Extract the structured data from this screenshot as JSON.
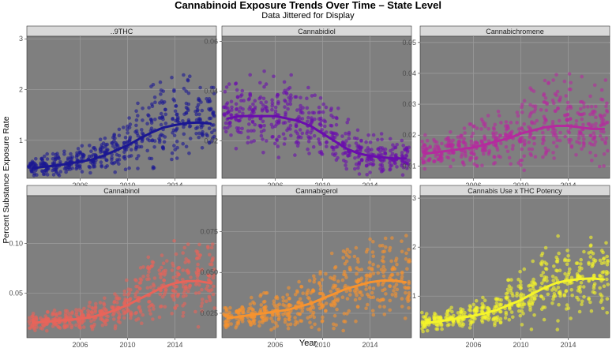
{
  "chart_data": {
    "title": "Cannabinoid Exposure Trends Over Time – State Level",
    "subtitle": "Data Jittered for Display",
    "xlabel": "Year",
    "ylabel": "Percent Substance Exposure Rate",
    "panels": [
      {
        "name": "..9THC",
        "type": "scatter",
        "color": "#1b1792",
        "xlim": [
          2001.5,
          2017.5
        ],
        "ylim": [
          0.25,
          3.05
        ],
        "yticks": [
          1,
          2,
          3
        ],
        "ytick_labels": [
          "1",
          "2",
          "3"
        ],
        "xticks": [
          2006,
          2010,
          2014
        ],
        "xtick_labels": [
          "2006",
          "2010",
          "2014"
        ],
        "x": [
          2002,
          2003,
          2004,
          2005,
          2006,
          2007,
          2008,
          2009,
          2010,
          2011,
          2012,
          2013,
          2014,
          2015,
          2016,
          2017
        ],
        "mean": [
          0.45,
          0.48,
          0.5,
          0.54,
          0.58,
          0.62,
          0.7,
          0.8,
          0.9,
          1.03,
          1.15,
          1.25,
          1.3,
          1.34,
          1.35,
          1.33
        ],
        "spread": [
          0.15,
          0.16,
          0.16,
          0.18,
          0.2,
          0.22,
          0.25,
          0.3,
          0.4,
          0.5,
          0.6,
          0.65,
          0.65,
          0.6,
          0.55,
          0.55
        ]
      },
      {
        "name": "Cannabidiol",
        "type": "scatter",
        "color": "#6a0dad",
        "xlim": [
          2001.5,
          2017.5
        ],
        "ylim": [
          0.005,
          0.062
        ],
        "yticks": [
          0.02,
          0.04,
          0.06
        ],
        "ytick_labels": [
          "0.02",
          "0.04",
          "0.06"
        ],
        "xticks": [
          2006,
          2010,
          2014
        ],
        "xtick_labels": [
          "2006",
          "2010",
          "2014"
        ],
        "x": [
          2002,
          2003,
          2004,
          2005,
          2006,
          2007,
          2008,
          2009,
          2010,
          2011,
          2012,
          2013,
          2014,
          2015,
          2016,
          2017
        ],
        "mean": [
          0.029,
          0.03,
          0.03,
          0.03,
          0.03,
          0.029,
          0.028,
          0.026,
          0.023,
          0.02,
          0.017,
          0.015,
          0.014,
          0.0135,
          0.013,
          0.013
        ],
        "spread": [
          0.01,
          0.011,
          0.012,
          0.012,
          0.012,
          0.012,
          0.012,
          0.011,
          0.01,
          0.009,
          0.008,
          0.007,
          0.006,
          0.006,
          0.005,
          0.005
        ]
      },
      {
        "name": "Cannabichromene",
        "type": "scatter",
        "color": "#b52a9e",
        "xlim": [
          2001.5,
          2017.5
        ],
        "ylim": [
          0.006,
          0.052
        ],
        "yticks": [
          0.01,
          0.02,
          0.03,
          0.04,
          0.05
        ],
        "ytick_labels": [
          "0.01",
          "0.02",
          "0.03",
          "0.04",
          "0.05"
        ],
        "xticks": [
          2006,
          2010,
          2014
        ],
        "xtick_labels": [
          "2006",
          "2010",
          "2014"
        ],
        "x": [
          2002,
          2003,
          2004,
          2005,
          2006,
          2007,
          2008,
          2009,
          2010,
          2011,
          2012,
          2013,
          2014,
          2015,
          2016,
          2017
        ],
        "mean": [
          0.014,
          0.0145,
          0.015,
          0.0155,
          0.016,
          0.017,
          0.018,
          0.019,
          0.0205,
          0.0215,
          0.0225,
          0.023,
          0.023,
          0.0225,
          0.022,
          0.022
        ],
        "spread": [
          0.004,
          0.004,
          0.0045,
          0.005,
          0.005,
          0.006,
          0.007,
          0.008,
          0.009,
          0.01,
          0.011,
          0.012,
          0.011,
          0.011,
          0.01,
          0.01
        ]
      },
      {
        "name": "Cannabinol",
        "type": "scatter",
        "color": "#e8645a",
        "xlim": [
          2001.5,
          2017.5
        ],
        "ylim": [
          0.005,
          0.148
        ],
        "yticks": [
          0.05,
          0.1
        ],
        "ytick_labels": [
          "0.05",
          "0.10"
        ],
        "xticks": [
          2006,
          2010,
          2014
        ],
        "xtick_labels": [
          "2006",
          "2010",
          "2014"
        ],
        "x": [
          2002,
          2003,
          2004,
          2005,
          2006,
          2007,
          2008,
          2009,
          2010,
          2011,
          2012,
          2013,
          2014,
          2015,
          2016,
          2017
        ],
        "mean": [
          0.02,
          0.021,
          0.022,
          0.023,
          0.024,
          0.026,
          0.029,
          0.033,
          0.038,
          0.044,
          0.05,
          0.056,
          0.06,
          0.062,
          0.062,
          0.06
        ],
        "spread": [
          0.007,
          0.007,
          0.008,
          0.008,
          0.009,
          0.01,
          0.012,
          0.014,
          0.017,
          0.022,
          0.026,
          0.03,
          0.032,
          0.032,
          0.03,
          0.028
        ]
      },
      {
        "name": "Cannabigerol",
        "type": "scatter",
        "color": "#f7932e",
        "xlim": [
          2001.5,
          2017.5
        ],
        "ylim": [
          0.01,
          0.097
        ],
        "yticks": [
          0.025,
          0.05,
          0.075
        ],
        "ytick_labels": [
          "0.025",
          "0.050",
          "0.075"
        ],
        "xticks": [
          2006,
          2010,
          2014
        ],
        "xtick_labels": [
          "2006",
          "2010",
          "2014"
        ],
        "x": [
          2002,
          2003,
          2004,
          2005,
          2006,
          2007,
          2008,
          2009,
          2010,
          2011,
          2012,
          2013,
          2014,
          2015,
          2016,
          2017
        ],
        "mean": [
          0.022,
          0.023,
          0.024,
          0.025,
          0.026,
          0.027,
          0.029,
          0.031,
          0.034,
          0.037,
          0.04,
          0.042,
          0.044,
          0.045,
          0.045,
          0.044
        ],
        "spread": [
          0.006,
          0.007,
          0.007,
          0.008,
          0.009,
          0.01,
          0.011,
          0.013,
          0.015,
          0.017,
          0.019,
          0.02,
          0.02,
          0.02,
          0.019,
          0.019
        ]
      },
      {
        "name": "Cannabis Use x THC Potency",
        "type": "scatter",
        "color": "#f5f52a",
        "xlim": [
          2001.5,
          2017.5
        ],
        "ylim": [
          0.15,
          3.05
        ],
        "yticks": [
          1,
          2,
          3
        ],
        "ytick_labels": [
          "1",
          "2",
          "3"
        ],
        "xticks": [
          2006,
          2010,
          2014
        ],
        "xtick_labels": [
          "2006",
          "2010",
          "2014"
        ],
        "x": [
          2002,
          2003,
          2004,
          2005,
          2006,
          2007,
          2008,
          2009,
          2010,
          2011,
          2012,
          2013,
          2014,
          2015,
          2016,
          2017
        ],
        "mean": [
          0.45,
          0.48,
          0.52,
          0.56,
          0.6,
          0.65,
          0.72,
          0.82,
          0.92,
          1.05,
          1.17,
          1.27,
          1.32,
          1.35,
          1.36,
          1.34
        ],
        "spread": [
          0.15,
          0.16,
          0.17,
          0.19,
          0.21,
          0.24,
          0.28,
          0.33,
          0.42,
          0.52,
          0.6,
          0.64,
          0.64,
          0.6,
          0.56,
          0.55
        ]
      }
    ]
  }
}
